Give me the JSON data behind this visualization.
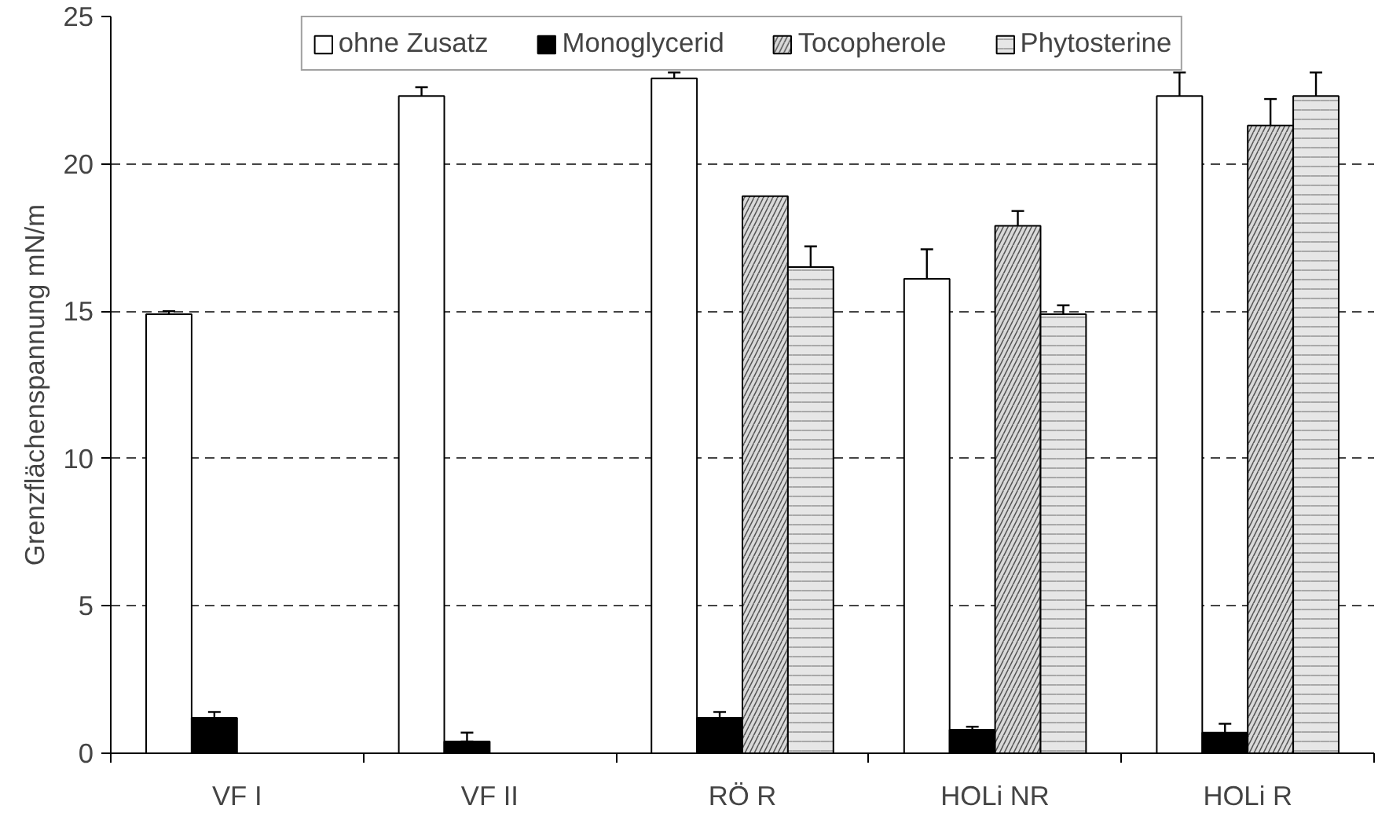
{
  "chart_data": {
    "type": "bar",
    "ylabel": "Grenzflächenspannung mN/m",
    "categories": [
      "VF I",
      "VF II",
      "RÖ R",
      "HOLi NR",
      "HOLi R"
    ],
    "series": [
      {
        "name": "ohne Zusatz",
        "color": "#ffffff",
        "values": [
          14.9,
          22.3,
          22.9,
          16.1,
          22.3
        ],
        "errors": [
          0.1,
          0.3,
          0.2,
          1.0,
          0.8
        ]
      },
      {
        "name": "Monoglycerid",
        "color": "#000000",
        "values": [
          1.2,
          0.4,
          1.2,
          0.8,
          0.7
        ],
        "errors": [
          0.2,
          [
            0.4,
            0.7
          ],
          0.2,
          0.1,
          0.3
        ]
      },
      {
        "name": "Tocopherole",
        "color": "#d9d9d9",
        "values": [
          null,
          null,
          18.9,
          17.9,
          21.3
        ],
        "errors": [
          null,
          null,
          null,
          0.5,
          0.9
        ]
      },
      {
        "name": "Phytosterine",
        "color": "#e6e6e6",
        "values": [
          null,
          null,
          16.5,
          14.9,
          22.3
        ],
        "errors": [
          null,
          null,
          0.7,
          0.3,
          0.8
        ]
      }
    ],
    "ylim": [
      0,
      25
    ],
    "yticks": [
      0,
      5,
      10,
      15,
      20,
      25
    ],
    "grid": "y",
    "legend": "top"
  }
}
